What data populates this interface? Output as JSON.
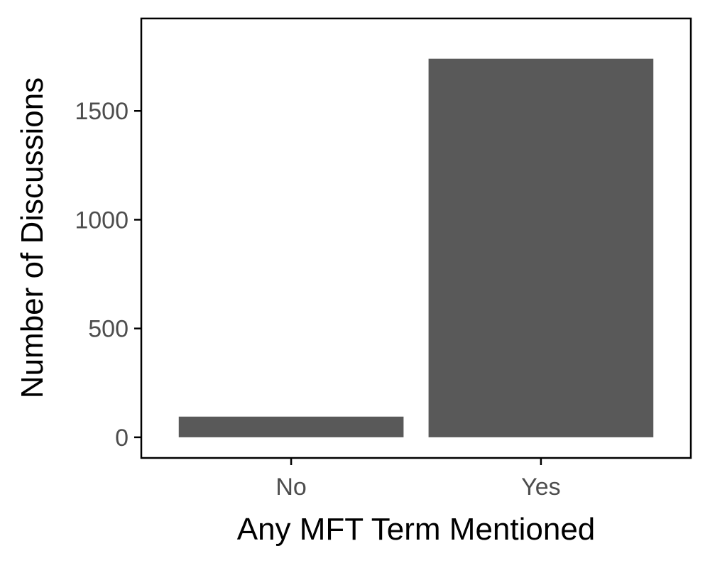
{
  "chart_data": {
    "type": "bar",
    "categories": [
      "No",
      "Yes"
    ],
    "values": [
      95,
      1740
    ],
    "xlabel": "Any MFT Term Mentioned",
    "ylabel": "Number of Discussions",
    "ylim": [
      -95,
      1925
    ],
    "yticks": [
      0,
      500,
      1000,
      1500
    ],
    "ytick_labels": [
      "0",
      "500",
      "1000",
      "1500"
    ],
    "grid": false,
    "legend": "none",
    "bar_color": "#595959",
    "axis_color": "#000000",
    "tick_label_color": "#4d4d4d"
  }
}
